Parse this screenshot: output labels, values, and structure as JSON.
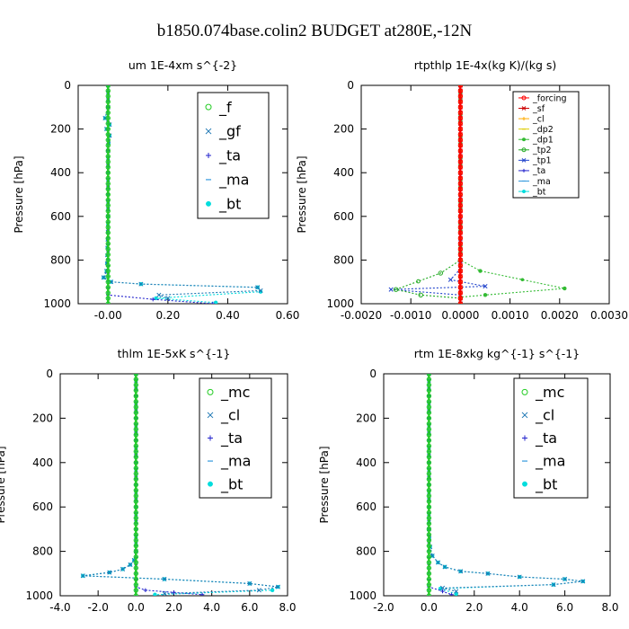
{
  "figure_title": "b1850.074base.colin2  BUDGET at280E,-12N",
  "colors": {
    "f": "#22cc22",
    "gf": "#1f77b4",
    "ta": "#2222cc",
    "ma": "#3399dd",
    "bt": "#00dddd",
    "forcing": "#ff0000",
    "sf": "#cc0000",
    "cl": "#ffaa00",
    "dp2": "#ddcc00",
    "dp1": "#33bb33",
    "tp2": "#22aa22",
    "tp1": "#2244cc",
    "mc": "#22cc22"
  },
  "chart_data": [
    {
      "type": "line",
      "title": "um   1E-4xm  s^{-2}",
      "ylabel": "Pressure [hPa]",
      "xlim": [
        -0.1,
        0.6
      ],
      "ylim": [
        1000,
        0
      ],
      "xticks": [
        -0.0,
        0.2,
        0.4,
        0.6
      ],
      "xtick_labels": [
        "-0.00",
        "0.20",
        "0.40",
        "0.60"
      ],
      "yticks": [
        0,
        200,
        400,
        600,
        800,
        1000
      ],
      "ytick_labels": [
        "0",
        "200",
        "400",
        "600",
        "800",
        "1000"
      ],
      "legend_size": "large",
      "series": [
        {
          "name": "_f",
          "color": "#22cc22",
          "x": [
            0,
            0
          ],
          "y": [
            0,
            1000
          ]
        },
        {
          "name": "_gf",
          "color": "#1f77b4",
          "x": [
            0.0,
            0.0,
            -0.01,
            0.005,
            -0.005,
            0.005,
            0.0,
            0.0,
            -0.005,
            -0.015,
            0.01,
            0.11,
            0.5,
            0.51,
            0.17,
            0.2
          ],
          "y": [
            0,
            100,
            150,
            180,
            200,
            230,
            300,
            600,
            850,
            880,
            900,
            910,
            925,
            940,
            960,
            975
          ]
        },
        {
          "name": "_ta",
          "color": "#2222cc",
          "x": [
            0,
            0,
            0.15,
            0.35
          ],
          "y": [
            0,
            960,
            980,
            1000
          ]
        },
        {
          "name": "_ma",
          "color": "#3399dd",
          "x": [
            0,
            0
          ],
          "y": [
            0,
            1000
          ]
        },
        {
          "name": "_bt",
          "color": "#00dddd",
          "x": [
            0.0,
            0.0,
            -0.01,
            0.005,
            -0.005,
            0.005,
            0.0,
            0.0,
            -0.005,
            -0.015,
            0.01,
            0.11,
            0.5,
            0.51,
            0.16,
            0.36
          ],
          "y": [
            0,
            100,
            150,
            180,
            200,
            230,
            300,
            600,
            850,
            880,
            900,
            910,
            925,
            945,
            975,
            995
          ]
        }
      ]
    },
    {
      "type": "line",
      "title": "rtpthlp   1E-4x(kg K)/(kg s)",
      "ylabel": "Pressure [hPa]",
      "xlim": [
        -0.002,
        0.003
      ],
      "ylim": [
        1000,
        0
      ],
      "xticks": [
        -0.002,
        -0.001,
        0.0,
        0.001,
        0.002,
        0.003
      ],
      "xtick_labels": [
        "-0.0020",
        "-0.0010",
        "0.0000",
        "0.0010",
        "0.0020",
        "0.0030"
      ],
      "yticks": [
        0,
        200,
        400,
        600,
        800,
        1000
      ],
      "ytick_labels": [
        "0",
        "200",
        "400",
        "600",
        "800",
        "1000"
      ],
      "legend_size": "small",
      "series": [
        {
          "name": "_forcing",
          "color": "#ff0000",
          "x": [
            0,
            0
          ],
          "y": [
            0,
            1000
          ]
        },
        {
          "name": "_sf",
          "color": "#cc0000",
          "x": [
            0,
            0
          ],
          "y": [
            0,
            1000
          ]
        },
        {
          "name": "_cl",
          "color": "#ffaa00",
          "x": [
            0,
            0
          ],
          "y": [
            0,
            1000
          ]
        },
        {
          "name": "_dp2",
          "color": "#ddcc00",
          "x": [
            0,
            0
          ],
          "y": [
            0,
            1000
          ]
        },
        {
          "name": "_dp1",
          "color": "#33bb33",
          "x": [
            0.0,
            0.0,
            0.0004,
            0.0021,
            0.0005,
            0.0,
            0.0
          ],
          "y": [
            0,
            800,
            850,
            930,
            960,
            970,
            1000
          ]
        },
        {
          "name": "_tp2",
          "color": "#22aa22",
          "x": [
            0.0,
            0.0,
            -0.0004,
            -0.0013,
            -0.0008,
            0.0,
            0.0
          ],
          "y": [
            0,
            800,
            860,
            935,
            960,
            975,
            1000
          ]
        },
        {
          "name": "_tp1",
          "color": "#2244cc",
          "x": [
            0.0,
            0.0,
            -0.0002,
            0.0005,
            -0.0014,
            0.0,
            0.0
          ],
          "y": [
            0,
            840,
            890,
            920,
            935,
            960,
            1000
          ]
        },
        {
          "name": "_ta",
          "color": "#2222cc",
          "x": [
            0,
            0
          ],
          "y": [
            0,
            1000
          ]
        },
        {
          "name": "_ma",
          "color": "#3399dd",
          "x": [
            0,
            0
          ],
          "y": [
            0,
            1000
          ]
        },
        {
          "name": "_bt",
          "color": "#00dddd",
          "x": [
            0,
            0
          ],
          "y": [
            0,
            1000
          ]
        }
      ]
    },
    {
      "type": "line",
      "title": "thlm   1E-5xK  s^{-1}",
      "ylabel": "Pressure [hPa]",
      "xlim": [
        -4.0,
        8.0
      ],
      "ylim": [
        1000,
        0
      ],
      "xticks": [
        -4,
        -2,
        0,
        2,
        4,
        6,
        8
      ],
      "xtick_labels": [
        "-4.0",
        "-2.0",
        "0.0",
        "2.0",
        "4.0",
        "6.0",
        "8.0"
      ],
      "yticks": [
        0,
        200,
        400,
        600,
        800,
        1000
      ],
      "ytick_labels": [
        "0",
        "200",
        "400",
        "600",
        "800",
        "1000"
      ],
      "legend_size": "large",
      "series": [
        {
          "name": "_mc",
          "color": "#22cc22",
          "x": [
            0,
            0
          ],
          "y": [
            0,
            1000
          ]
        },
        {
          "name": "_cl",
          "color": "#1f77b4",
          "x": [
            0.0,
            0.0,
            -0.1,
            -0.3,
            -0.7,
            -1.4,
            -2.8,
            1.5,
            6.0,
            7.5,
            6.5,
            1.5
          ],
          "y": [
            0,
            800,
            840,
            860,
            880,
            895,
            910,
            925,
            945,
            960,
            975,
            990
          ]
        },
        {
          "name": "_ta",
          "color": "#2222cc",
          "x": [
            0,
            0,
            0.5,
            2.0,
            3.5
          ],
          "y": [
            0,
            960,
            975,
            985,
            995
          ]
        },
        {
          "name": "_ma",
          "color": "#3399dd",
          "x": [
            0,
            0
          ],
          "y": [
            0,
            1000
          ]
        },
        {
          "name": "_bt",
          "color": "#00dddd",
          "x": [
            0.0,
            0.0,
            -0.1,
            -0.3,
            -0.7,
            -1.4,
            -2.8,
            1.5,
            6.0,
            7.5,
            7.2,
            1.0
          ],
          "y": [
            0,
            800,
            840,
            860,
            880,
            895,
            910,
            925,
            945,
            960,
            975,
            995
          ]
        }
      ]
    },
    {
      "type": "line",
      "title": "rtm   1E-8xkg kg^{-1} s^{-1}",
      "ylabel": "Pressure [hPa]",
      "xlim": [
        -2.0,
        8.0
      ],
      "ylim": [
        1000,
        0
      ],
      "xticks": [
        -2,
        0,
        2,
        4,
        6,
        8
      ],
      "xtick_labels": [
        "-2.0",
        "0.0",
        "2.0",
        "4.0",
        "6.0",
        "8.0"
      ],
      "yticks": [
        0,
        200,
        400,
        600,
        800,
        1000
      ],
      "ytick_labels": [
        "0",
        "200",
        "400",
        "600",
        "800",
        "1000"
      ],
      "legend_size": "large",
      "series": [
        {
          "name": "_mc",
          "color": "#22cc22",
          "x": [
            0,
            0
          ],
          "y": [
            0,
            1000
          ]
        },
        {
          "name": "_cl",
          "color": "#1f77b4",
          "x": [
            0.0,
            0.0,
            0.05,
            0.15,
            0.4,
            0.7,
            1.4,
            2.6,
            4.0,
            6.0,
            6.8,
            5.5,
            0.6,
            1.2
          ],
          "y": [
            0,
            700,
            780,
            820,
            850,
            870,
            890,
            900,
            915,
            925,
            935,
            950,
            965,
            980
          ]
        },
        {
          "name": "_ta",
          "color": "#2222cc",
          "x": [
            0,
            0,
            0.6,
            1.0
          ],
          "y": [
            0,
            960,
            980,
            995
          ]
        },
        {
          "name": "_ma",
          "color": "#3399dd",
          "x": [
            0,
            0
          ],
          "y": [
            0,
            1000
          ]
        },
        {
          "name": "_bt",
          "color": "#00dddd",
          "x": [
            0.0,
            0.0,
            0.05,
            0.15,
            0.4,
            0.7,
            1.4,
            2.6,
            4.0,
            6.0,
            6.8,
            5.5,
            0.5,
            1.2
          ],
          "y": [
            0,
            700,
            780,
            820,
            850,
            870,
            890,
            900,
            915,
            925,
            935,
            950,
            968,
            992
          ]
        }
      ]
    }
  ]
}
